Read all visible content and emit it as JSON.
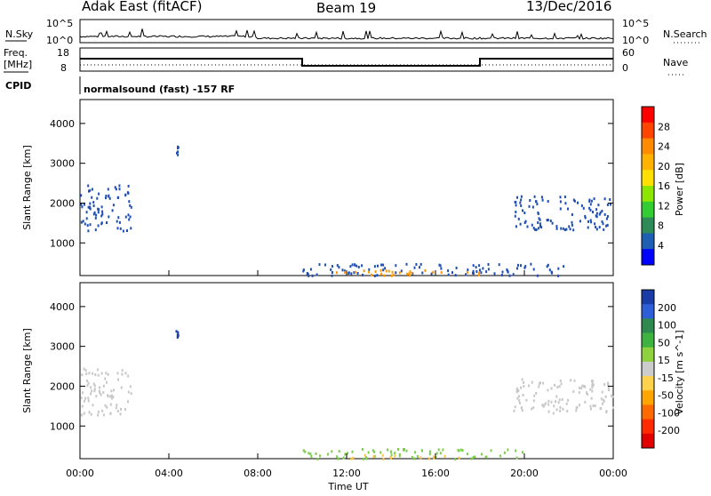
{
  "header": {
    "left": "Adak East (fitACF)",
    "center": "Beam 19",
    "right": "13/Dec/2016"
  },
  "sky_panel": {
    "left_label": "N.Sky",
    "left_ticks": [
      "10^5",
      "10^0"
    ],
    "right_ticks": [
      "10^5",
      "10^0"
    ],
    "right_label": "N.Search"
  },
  "freq_panel": {
    "left_label_1": "Freq.",
    "left_label_2": "[MHz]",
    "left_ticks": [
      "18",
      "8"
    ],
    "right_ticks": [
      "60",
      "0"
    ],
    "right_label": "Nave"
  },
  "cpid_panel": {
    "label": "CPID",
    "text": "normalsound (fast) -157 RF"
  },
  "time_axis": {
    "label": "Time UT",
    "ticks": [
      "00:00",
      "04:00",
      "08:00",
      "12:00",
      "16:00",
      "20:00",
      "00:00"
    ]
  },
  "chart_data": [
    {
      "type": "heatmap",
      "title": "",
      "ylabel": "Slant Range [km]",
      "xlabel": "Time UT",
      "xlim_hours": [
        0,
        24
      ],
      "ylim": [
        180,
        4600
      ],
      "y_ticks": [
        1000,
        2000,
        3000,
        4000
      ],
      "colorbar_label": "Power [dB]",
      "colorbar_ticks": [
        "28",
        "24",
        "20",
        "16",
        "12",
        "8",
        "4"
      ],
      "colorbar_colors": [
        "#ff0000",
        "#ff4500",
        "#ff8c00",
        "#ffb300",
        "#ffe000",
        "#8ce600",
        "#33cc33",
        "#2e8b57",
        "#1e5fb4",
        "#0000ff"
      ],
      "regions": [
        {
          "time": [
            0.0,
            2.3
          ],
          "range": [
            1300,
            2500
          ],
          "color": "#1f4fb5"
        },
        {
          "time": [
            4.3,
            4.4
          ],
          "range": [
            3200,
            3450
          ],
          "color": "#1f4fb5"
        },
        {
          "time": [
            19.5,
            24.0
          ],
          "range": [
            1350,
            2200
          ],
          "color": "#1f4fb5"
        },
        {
          "time": [
            10.0,
            22.0
          ],
          "range": [
            200,
            500
          ],
          "color": "#1f4fb5"
        },
        {
          "time": [
            11.5,
            18.0
          ],
          "range": [
            200,
            350
          ],
          "color": "#ff9800"
        }
      ]
    },
    {
      "type": "heatmap",
      "title": "",
      "ylabel": "Slant Range [km]",
      "xlabel": "Time UT",
      "xlim_hours": [
        0,
        24
      ],
      "ylim": [
        180,
        4600
      ],
      "y_ticks": [
        1000,
        2000,
        3000,
        4000
      ],
      "colorbar_label": "Velocity [m s^-1]",
      "colorbar_ticks": [
        "200",
        "100",
        "50",
        "15",
        "-15",
        "-50",
        "-100",
        "-200"
      ],
      "colorbar_colors": [
        "#1a3ca6",
        "#2e5fd6",
        "#2f8a4f",
        "#3fb33f",
        "#8fd13f",
        "#cccccc",
        "#ffd24d",
        "#ffa500",
        "#ff6a00",
        "#ff2a00",
        "#e00000"
      ],
      "regions": [
        {
          "time": [
            0.0,
            2.3
          ],
          "range": [
            1300,
            2500
          ],
          "color": "#c8c8c8"
        },
        {
          "time": [
            4.3,
            4.4
          ],
          "range": [
            3200,
            3450
          ],
          "color": "#1a3ca6"
        },
        {
          "time": [
            19.5,
            24.0
          ],
          "range": [
            1350,
            2200
          ],
          "color": "#c8c8c8"
        },
        {
          "time": [
            10.0,
            20.0
          ],
          "range": [
            200,
            450
          ],
          "color": "#7ccf4a"
        },
        {
          "time": [
            12.0,
            17.5
          ],
          "range": [
            200,
            300
          ],
          "color": "#ffc240"
        }
      ]
    }
  ]
}
